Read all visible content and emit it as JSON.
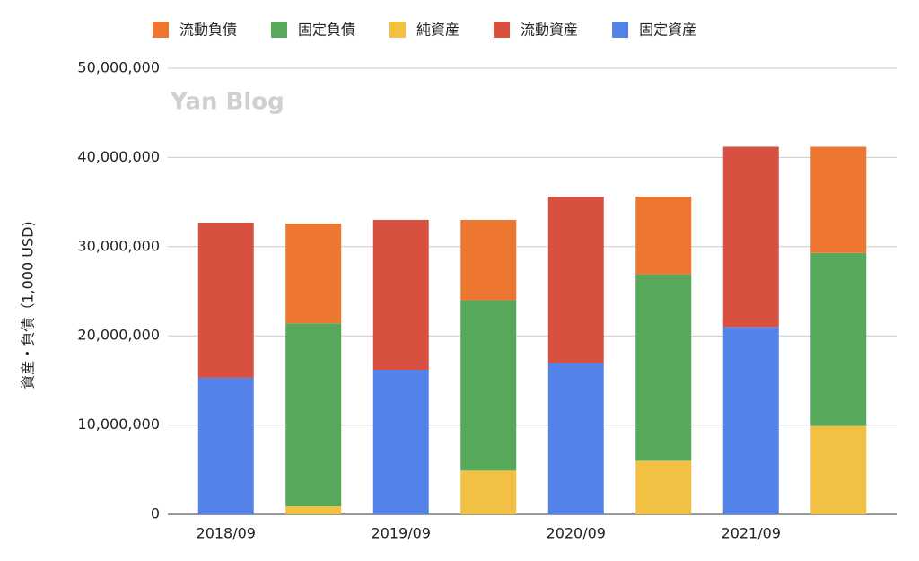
{
  "chart_data": {
    "type": "stacked-bar",
    "y_label": "資産・負債（1,000 USD)",
    "annotation": "Yan Blog",
    "categories": [
      "2018/09",
      null,
      "2019/09",
      null,
      "2020/09",
      null,
      "2021/09",
      null
    ],
    "series": [
      {
        "name": "流動負債",
        "color": "#ed7730",
        "values": [
          null,
          11200000,
          null,
          9000000,
          null,
          8700000,
          null,
          11900000
        ]
      },
      {
        "name": "固定負債",
        "color": "#57a85a",
        "values": [
          null,
          20500000,
          null,
          19100000,
          null,
          20900000,
          null,
          19400000
        ]
      },
      {
        "name": "純資産",
        "color": "#f2c043",
        "values": [
          null,
          900000,
          null,
          4900000,
          null,
          6000000,
          null,
          9900000
        ]
      },
      {
        "name": "流動資産",
        "color": "#d85040",
        "values": [
          17400000,
          null,
          16800000,
          null,
          18600000,
          null,
          20200000,
          null
        ]
      },
      {
        "name": "固定資産",
        "color": "#5383e8",
        "values": [
          15300000,
          null,
          16200000,
          null,
          17000000,
          null,
          21000000,
          null
        ]
      }
    ],
    "ylim": [
      0,
      50000000
    ],
    "yticks": [
      0,
      {
        "value": 10000000,
        "label": "10,000,000"
      },
      {
        "value": 20000000,
        "label": "20,000,000"
      },
      {
        "value": 30000000,
        "label": "30,000,000"
      },
      {
        "value": 40000000,
        "label": "40,000,000"
      },
      {
        "value": 50000000,
        "label": "50,000,000"
      }
    ],
    "grid": true
  }
}
